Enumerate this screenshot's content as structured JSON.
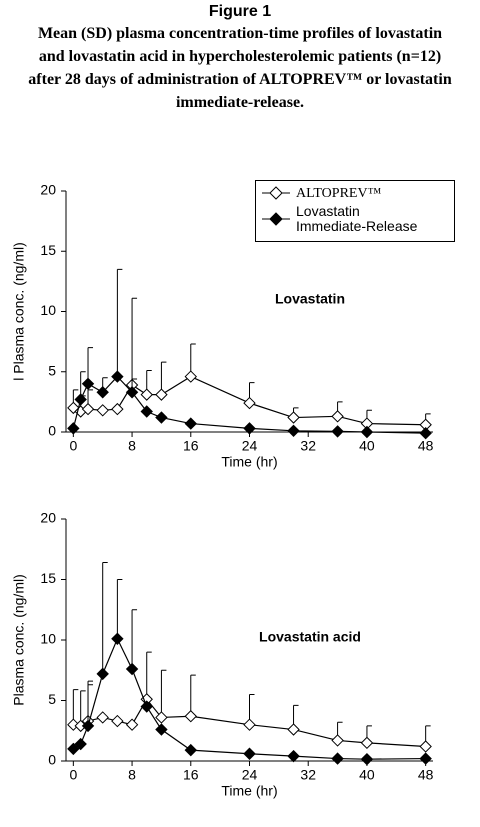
{
  "figure": {
    "label": "Figure 1",
    "caption": [
      "Mean (SD) plasma concentration-time profiles of lovastatin",
      "and lovastatin acid in hypercholesterolemic patients (n=12)",
      "after 28 days of administration of ALTOPREV™ or lovastatin",
      "immediate-release."
    ]
  },
  "chart_data": [
    {
      "type": "line",
      "annotation": "Lovastatin",
      "x_label": "Time (hr)",
      "y_label": "l Plasma conc. (ng/ml)",
      "x": [
        0,
        1,
        2,
        4,
        6,
        8,
        10,
        12,
        16,
        24,
        30,
        36,
        40,
        48
      ],
      "xlim": [
        -1,
        49
      ],
      "xticks": [
        0,
        8,
        16,
        24,
        32,
        40,
        48
      ],
      "ylim": [
        0,
        20
      ],
      "yticks": [
        0,
        5,
        10,
        15,
        20
      ],
      "legend": "upper right",
      "series": [
        {
          "name": "ALTOPREV™",
          "color": "#000000",
          "marker_fill": "#ffffff",
          "values": [
            2.0,
            1.7,
            1.9,
            1.8,
            1.9,
            3.9,
            3.1,
            3.1,
            4.6,
            2.4,
            1.2,
            1.3,
            0.7,
            0.6
          ],
          "errors": [
            1.5,
            1.3,
            1.6,
            null,
            null,
            7.2,
            2.0,
            2.7,
            2.7,
            1.7,
            0.8,
            1.2,
            1.1,
            0.9
          ]
        },
        {
          "name": "Lovastatin Immediate-Release",
          "color": "#000000",
          "marker_fill": "#000000",
          "values": [
            0.3,
            2.7,
            4.0,
            3.3,
            4.6,
            3.3,
            1.7,
            1.2,
            0.7,
            0.3,
            0.1,
            0.05,
            0.0,
            -0.1
          ],
          "errors": [
            null,
            2.3,
            3.0,
            1.2,
            8.9,
            1.1,
            null,
            null,
            null,
            null,
            null,
            null,
            null,
            null
          ]
        }
      ]
    },
    {
      "type": "line",
      "annotation": "Lovastatin acid",
      "x_label": "Time (hr)",
      "y_label": "Plasma conc. (ng/ml)",
      "x": [
        0,
        1,
        2,
        4,
        6,
        8,
        10,
        12,
        16,
        24,
        30,
        36,
        40,
        48
      ],
      "xlim": [
        -1,
        49
      ],
      "xticks": [
        0,
        8,
        16,
        24,
        32,
        40,
        48
      ],
      "ylim": [
        0,
        20
      ],
      "yticks": [
        0,
        5,
        10,
        15,
        20
      ],
      "series": [
        {
          "color": "#000000",
          "marker_fill": "#ffffff",
          "values": [
            3.0,
            2.9,
            3.3,
            3.6,
            3.3,
            3.0,
            5.1,
            3.6,
            3.7,
            3.0,
            2.6,
            1.7,
            1.5,
            1.2
          ],
          "errors": [
            2.9,
            2.9,
            3.0,
            null,
            null,
            null,
            3.9,
            3.9,
            3.4,
            2.5,
            2.0,
            1.5,
            1.4,
            1.7
          ]
        },
        {
          "color": "#000000",
          "marker_fill": "#000000",
          "values": [
            1.0,
            1.4,
            2.9,
            7.2,
            10.1,
            7.6,
            4.5,
            2.6,
            0.9,
            0.6,
            0.4,
            0.2,
            0.15,
            0.2
          ],
          "errors": [
            null,
            null,
            3.7,
            9.2,
            4.9,
            4.9,
            null,
            null,
            null,
            null,
            null,
            null,
            null,
            null
          ]
        }
      ]
    }
  ]
}
